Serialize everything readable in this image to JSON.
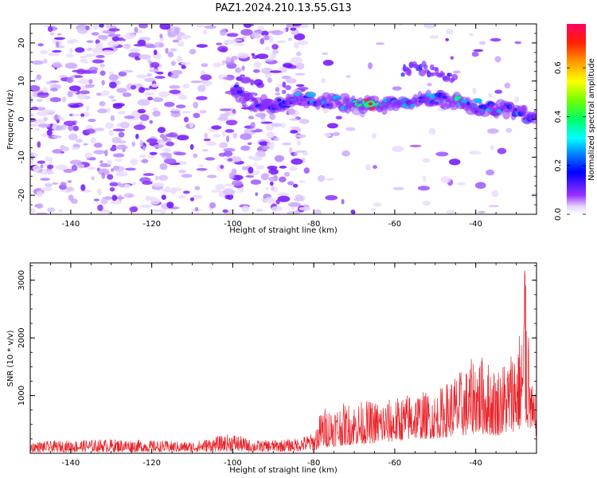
{
  "title": "PAZ1.2024.210.13.55.G13",
  "colors": {
    "snr_line": "#e8232a",
    "ridge": [
      "#7b2cf0",
      "#1a1aff",
      "#00bfff",
      "#00ff80",
      "#ff2040"
    ]
  },
  "chart_data": [
    {
      "type": "heatmap",
      "xlabel": "Height of straight line (km)",
      "ylabel": "Frequency (Hz)",
      "xlim": [
        -150,
        -25
      ],
      "ylim": [
        -25,
        25
      ],
      "xticks": [
        -140,
        -120,
        -100,
        -80,
        -60,
        -40
      ],
      "yticks": [
        -20,
        -10,
        0,
        10,
        20
      ],
      "colorbar": {
        "label": "Normalized spectral amplitude",
        "range": [
          0,
          0.78
        ],
        "ticks": [
          0.0,
          0.2,
          0.4,
          0.6
        ],
        "colormap": "gist_ncar-like"
      },
      "ridge": {
        "description_values": "main signal ridge frequency vs height",
        "x": [
          -100,
          -95,
          -90,
          -85,
          -80,
          -75,
          -70,
          -65,
          -60,
          -55,
          -50,
          -45,
          -40,
          -35,
          -30,
          -25
        ],
        "y": [
          8,
          4,
          4,
          5,
          5,
          4.5,
          4,
          4,
          3.5,
          4.5,
          5,
          4.5,
          3.5,
          3,
          2,
          0
        ],
        "amplitude": [
          0.25,
          0.2,
          0.25,
          0.3,
          0.35,
          0.45,
          0.55,
          0.75,
          0.4,
          0.35,
          0.3,
          0.45,
          0.35,
          0.3,
          0.3,
          0.3
        ]
      },
      "upper_branch": {
        "x": [
          -58,
          -55,
          -52,
          -48,
          -45
        ],
        "y": [
          12,
          14,
          13,
          11,
          10
        ]
      }
    },
    {
      "type": "line",
      "xlabel": "Height of straight line (km)",
      "ylabel": "SNR (10 * v/v)",
      "xlim": [
        -150,
        -25
      ],
      "ylim": [
        0,
        3300
      ],
      "xticks": [
        -140,
        -120,
        -100,
        -80,
        -60,
        -40
      ],
      "yticks": [
        1000,
        2000,
        3000
      ],
      "series": [
        {
          "envelope_x": [
            -150,
            -130,
            -110,
            -100,
            -95,
            -85,
            -80,
            -78,
            -70,
            -60,
            -55,
            -50,
            -45,
            -42,
            -40,
            -35,
            -32,
            -29,
            -28,
            -26,
            -25
          ],
          "envelope_y": [
            200,
            250,
            200,
            350,
            220,
            250,
            350,
            800,
            900,
            950,
            1100,
            1050,
            1400,
            1500,
            1800,
            1500,
            1700,
            2200,
            3250,
            1100,
            1000
          ],
          "baseline_y": [
            20,
            20,
            20,
            30,
            20,
            30,
            40,
            100,
            150,
            200,
            250,
            250,
            300,
            300,
            350,
            300,
            350,
            400,
            500,
            300,
            300
          ]
        }
      ]
    }
  ]
}
